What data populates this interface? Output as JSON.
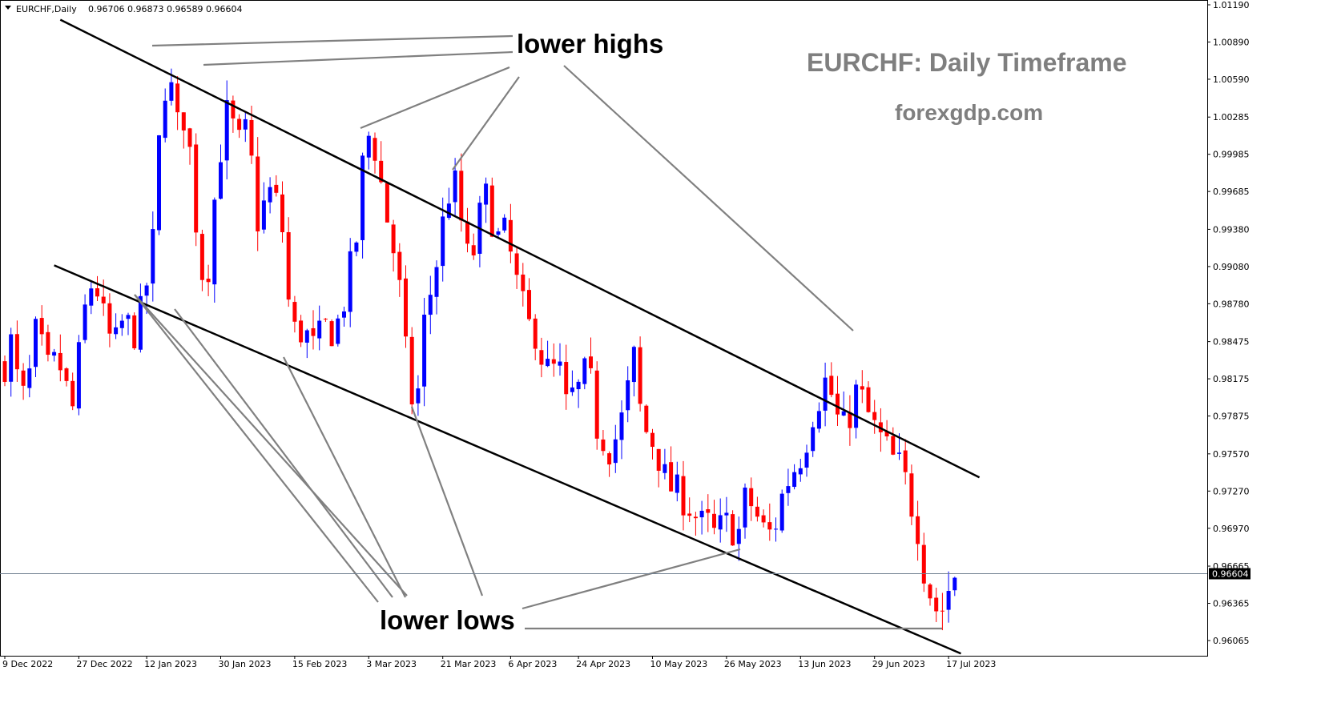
{
  "header": {
    "symbol": "EURCHF,Daily",
    "ohlc": "0.96706 0.96873 0.96589 0.96604"
  },
  "overlay": {
    "title": "EURCHF: Daily Timeframe",
    "website": "forexgdp.com",
    "label_highs": "lower highs",
    "label_lows": "lower lows"
  },
  "colors": {
    "bull": "#0000ff",
    "bear": "#ff0000",
    "channel": "#000000",
    "pointer": "#808080",
    "price_line": "#708090",
    "title": "#7f7f7f"
  },
  "chart_data": {
    "type": "candlestick",
    "symbol": "EURCHF",
    "timeframe": "Daily",
    "ylim": [
      0.9594,
      1.0119
    ],
    "grid": false,
    "current_price": "0.96604",
    "y_ticks": [
      "1.01190",
      "1.00890",
      "1.00590",
      "1.00285",
      "0.99985",
      "0.99685",
      "0.99380",
      "0.99080",
      "0.98780",
      "0.98475",
      "0.98175",
      "0.97875",
      "0.97570",
      "0.97270",
      "0.96970",
      "0.96665",
      "0.96365",
      "0.96065"
    ],
    "x_ticks": [
      {
        "label": "9 Dec 2022",
        "index": 0
      },
      {
        "label": "27 Dec 2022",
        "index": 12
      },
      {
        "label": "12 Jan 2023",
        "index": 23
      },
      {
        "label": "30 Jan 2023",
        "index": 35
      },
      {
        "label": "15 Feb 2023",
        "index": 47
      },
      {
        "label": "3 Mar 2023",
        "index": 59
      },
      {
        "label": "21 Mar 2023",
        "index": 71
      },
      {
        "label": "6 Apr 2023",
        "index": 82
      },
      {
        "label": "24 Apr 2023",
        "index": 93
      },
      {
        "label": "10 May 2023",
        "index": 105
      },
      {
        "label": "26 May 2023",
        "index": 117
      },
      {
        "label": "13 Jun 2023",
        "index": 129
      },
      {
        "label": "29 Jun 2023",
        "index": 141
      },
      {
        "label": "17 Jul 2023",
        "index": 153
      }
    ],
    "close_path": [
      0.983,
      0.985,
      0.98,
      0.9805,
      0.9855,
      0.984,
      0.982,
      0.9835,
      0.9815,
      0.979,
      0.984,
      0.9885,
      0.99,
      0.987,
      0.985,
      0.9845,
      0.987,
      0.985,
      0.9865,
      0.9895,
      0.9935,
      1.005,
      1.006,
      1.002,
      1.003,
      0.999,
      0.991,
      0.9895,
      0.996,
      1.001,
      1.004,
      1.0,
      1.002,
      0.999,
      0.9935,
      0.997,
      0.9965,
      0.9945,
      0.9875,
      0.985,
      0.986,
      0.984,
      0.985,
      0.986,
      0.9855,
      0.987,
      0.99,
      0.993,
      1.0,
      1.002,
      0.9985,
      0.995,
      0.992,
      0.988,
      0.981,
      0.979,
      0.986,
      0.989,
      0.992,
      0.996,
      0.998,
      0.9945,
      0.991,
      0.9925,
      0.997,
      0.995,
      0.993,
      0.9935,
      0.9905,
      0.988,
      0.986,
      0.9855,
      0.983,
      0.982,
      0.983,
      0.9795,
      0.9805,
      0.981,
      0.983,
      0.978,
      0.977,
      0.976,
      0.9775,
      0.9795,
      0.984,
      0.979,
      0.977,
      0.9765,
      0.974,
      0.973,
      0.9725,
      0.972,
      0.971,
      0.97,
      0.97,
      0.969,
      0.97,
      0.97,
      0.969,
      0.972,
      0.9715,
      0.97,
      0.969,
      0.97,
      0.9725,
      0.974,
      0.975,
      0.9765,
      0.979,
      0.9805,
      0.982,
      0.979,
      0.9775,
      0.979,
      0.981,
      0.9795,
      0.978,
      0.977,
      0.976,
      0.975,
      0.9745,
      0.972,
      0.97,
      0.966,
      0.964,
      0.9625,
      0.9645,
      0.966
    ],
    "close_dates": [
      {
        "index": 0,
        "date": "9 Dec 2022"
      },
      {
        "index": 153,
        "date": "17 Jul 2023"
      }
    ],
    "candle_count": 155,
    "channel": {
      "upper_line": [
        {
          "index": 9,
          "price": 1.0107
        },
        {
          "index": 158,
          "price": 0.9738
        }
      ],
      "lower_line": [
        {
          "index": 8,
          "price": 0.9909
        },
        {
          "index": 155,
          "price": 0.9596
        }
      ]
    }
  }
}
